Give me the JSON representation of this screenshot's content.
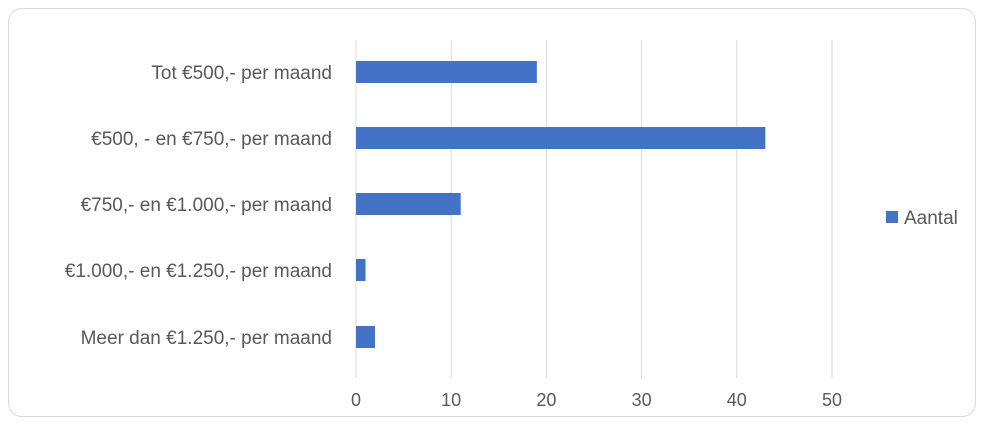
{
  "chart_data": {
    "type": "bar",
    "orientation": "horizontal",
    "title": "",
    "xlabel": "",
    "ylabel": "",
    "categories": [
      "Tot €500,- per maand",
      "€500, - en €750,- per maand",
      "€750,- en €1.000,- per maand",
      "€1.000,- en €1.250,- per maand",
      "Meer dan €1.250,- per maand"
    ],
    "series": [
      {
        "name": "Aantal",
        "values": [
          19,
          43,
          11,
          1,
          2
        ],
        "color": "#4472c4"
      }
    ],
    "xlim": [
      0,
      50
    ],
    "ticks": [
      "0",
      "10",
      "20",
      "30",
      "40",
      "50"
    ],
    "grid": "vertical",
    "legend_position": "right"
  }
}
